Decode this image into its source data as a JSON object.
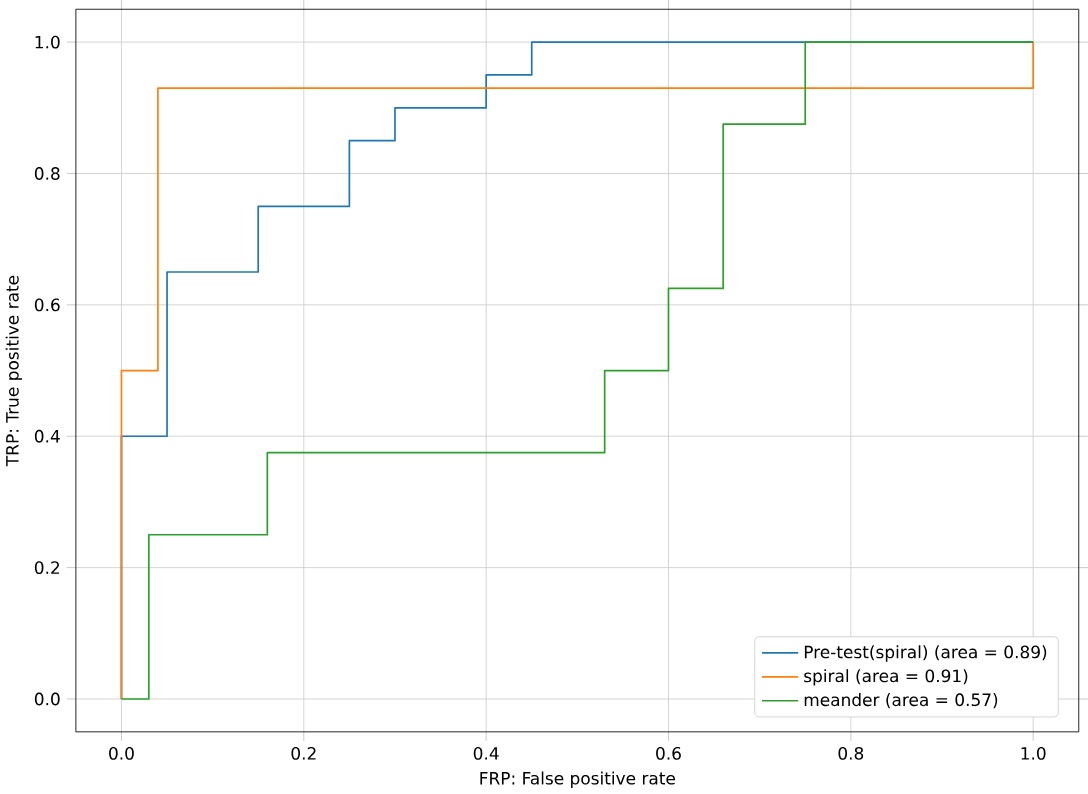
{
  "chart_data": {
    "type": "line",
    "xlabel": "FRP: False positive rate",
    "ylabel": "TRP: True positive rate",
    "xlim": [
      -0.05,
      1.05
    ],
    "ylim": [
      -0.05,
      1.05
    ],
    "xticks": [
      {
        "value": 0,
        "label": "0.0"
      },
      {
        "value": 0.2,
        "label": "0.2"
      },
      {
        "value": 0.4,
        "label": "0.4"
      },
      {
        "value": 0.6,
        "label": "0.6"
      },
      {
        "value": 0.8,
        "label": "0.8"
      },
      {
        "value": 1,
        "label": "1.0"
      }
    ],
    "yticks": [
      {
        "value": 0,
        "label": "0.0"
      },
      {
        "value": 0.2,
        "label": "0.2"
      },
      {
        "value": 0.4,
        "label": "0.4"
      },
      {
        "value": 0.6,
        "label": "0.6"
      },
      {
        "value": 0.8,
        "label": "0.8"
      },
      {
        "value": 1,
        "label": "1.0"
      }
    ],
    "grid": true,
    "legend": "bottom right",
    "series": [
      {
        "name": "Pre-test(spiral) (area = 0.89)",
        "color": "#1f77b4",
        "x": [
          0,
          0,
          0.05,
          0.05,
          0.15,
          0.15,
          0.25,
          0.25,
          0.3,
          0.3,
          0.4,
          0.4,
          0.45,
          0.45,
          1
        ],
        "values": [
          0,
          0.4,
          0.4,
          0.65,
          0.65,
          0.75,
          0.75,
          0.85,
          0.85,
          0.9,
          0.9,
          0.95,
          0.95,
          1,
          1
        ]
      },
      {
        "name": "spiral (area = 0.91)",
        "color": "#ff7f0e",
        "x": [
          0,
          0,
          0.04,
          0.04,
          1,
          1
        ],
        "values": [
          0,
          0.5,
          0.5,
          0.93,
          0.93,
          1
        ]
      },
      {
        "name": "meander (area = 0.57)",
        "color": "#2ca02c",
        "x": [
          0,
          0.03,
          0.03,
          0.16,
          0.16,
          0.53,
          0.53,
          0.6,
          0.6,
          0.66,
          0.66,
          0.75,
          0.75,
          1
        ],
        "values": [
          0,
          0,
          0.25,
          0.25,
          0.375,
          0.375,
          0.5,
          0.5,
          0.625,
          0.625,
          0.875,
          0.875,
          1,
          1
        ]
      }
    ]
  }
}
